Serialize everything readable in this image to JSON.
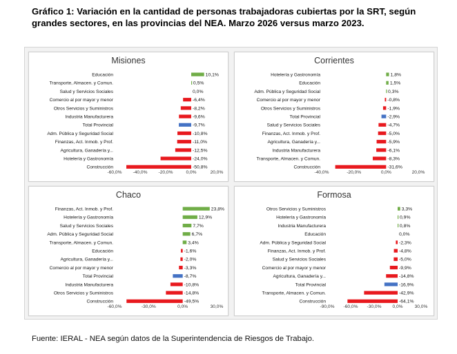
{
  "title": "Gráfico 1: Variación en la cantidad de personas trabajadoras cubiertas por la SRT, según grandes sectores, en las provincias del NEA. Marzo 2026 versus marzo 2023.",
  "source": "Fuente: IERAL - NEA según datos de la Superintendencia de Riesgos de Trabajo.",
  "colors": {
    "positive": "#70ad47",
    "negative": "#e8191e",
    "total": "#4472c4"
  },
  "chart_data": [
    {
      "type": "bar",
      "orientation": "horizontal",
      "title": "Misiones",
      "xlim": [
        -60,
        20
      ],
      "ticks": [
        -60,
        -40,
        -20,
        0,
        20
      ],
      "tick_labels": [
        "-60,0%",
        "-40,0%",
        "-20,0%",
        "0,0%",
        "20,0%"
      ],
      "categories": [
        "Educación",
        "Transporte, Almacen. y Comun.",
        "Salud y Servicios Sociales",
        "Comercio al por mayor y menor",
        "Otros Servicios y Suministros",
        "Industria Manufacturera",
        "Total Provincial",
        "Adm. Pública y Seguridad Social",
        "Finanzas, Act. Inmob. y Prof.",
        "Agricultura, Ganadería y...",
        "Hotelería y Gastronomía",
        "Construcción"
      ],
      "values": [
        10.1,
        0.5,
        0.0,
        -6.4,
        -8.2,
        -9.6,
        -9.7,
        -10.8,
        -11.0,
        -12.5,
        -24.0,
        -50.8
      ],
      "labels": [
        "10,1%",
        "0,5%",
        "0,0%",
        "-6,4%",
        "-8,2%",
        "-9,6%",
        "-9,7%",
        "-10,8%",
        "-11,0%",
        "-12,5%",
        "-24,0%",
        "-50,8%"
      ]
    },
    {
      "type": "bar",
      "orientation": "horizontal",
      "title": "Corrientes",
      "xlim": [
        -40,
        20
      ],
      "ticks": [
        -40,
        -20,
        0,
        20
      ],
      "tick_labels": [
        "-40,0%",
        "-20,0%",
        "0,0%",
        "20,0%"
      ],
      "categories": [
        "Hotelería y Gastronomía",
        "Educación",
        "Adm. Pública y Seguridad Social",
        "Comercio al por mayor y menor",
        "Otros Servicios y Suministros",
        "Total Provincial",
        "Salud y Servicios Sociales",
        "Finanzas, Act. Inmob. y Prof.",
        "Agricultura, Ganadería y...",
        "Industria Manufacturera",
        "Transporte, Almacen. y Comun.",
        "Construcción"
      ],
      "values": [
        1.8,
        1.5,
        0.3,
        -0.8,
        -1.9,
        -2.9,
        -4.7,
        -5.0,
        -5.9,
        -6.1,
        -8.3,
        -31.6
      ],
      "labels": [
        "1,8%",
        "1,5%",
        "0,3%",
        "-0,8%",
        "-1,9%",
        "-2,9%",
        "-4,7%",
        "-5,0%",
        "-5,9%",
        "-6,1%",
        "-8,3%",
        "-31,6%"
      ]
    },
    {
      "type": "bar",
      "orientation": "horizontal",
      "title": "Chaco",
      "xlim": [
        -60,
        30
      ],
      "ticks": [
        -60,
        -30,
        0,
        30
      ],
      "tick_labels": [
        "-60,0%",
        "-30,0%",
        "0,0%",
        "30,0%"
      ],
      "categories": [
        "Finanzas, Act. Inmob. y Prof.",
        "Hotelería y Gastronomía",
        "Salud y Servicios Sociales",
        "Adm. Pública y Seguridad Social",
        "Transporte, Almacen. y Comun.",
        "Educación",
        "Agricultura, Ganadería y...",
        "Comercio al por mayor y menor",
        "Total Provincial",
        "Industria Manufacturera",
        "Otros Servicios y Suministros",
        "Construcción"
      ],
      "values": [
        23.8,
        12.9,
        7.7,
        6.7,
        3.4,
        -1.6,
        -2.0,
        -3.3,
        -8.7,
        -10.8,
        -14.8,
        -49.5
      ],
      "labels": [
        "23,8%",
        "12,9%",
        "7,7%",
        "6,7%",
        "3,4%",
        "-1,6%",
        "-2,0%",
        "-3,3%",
        "-8,7%",
        "-10,8%",
        "-14,8%",
        "-49,5%"
      ]
    },
    {
      "type": "bar",
      "orientation": "horizontal",
      "title": "Formosa",
      "xlim": [
        -90,
        30
      ],
      "ticks": [
        -90,
        -60,
        -30,
        0,
        30
      ],
      "tick_labels": [
        "-90,0%",
        "-60,0%",
        "-30,0%",
        "0,0%",
        "30,0%"
      ],
      "categories": [
        "Otros Servicios y Suministros",
        "Hotelería y Gastronomía",
        "Industria Manufacturera",
        "Educación",
        "Adm. Pública y Seguridad Social",
        "Finanzas, Act. Inmob. y Prof.",
        "Salud y Servicios Sociales",
        "Comercio al por mayor y menor",
        "Agricultura, Ganadería y...",
        "Total Provincial",
        "Transporte, Almacen. y Comun.",
        "Construcción"
      ],
      "values": [
        3.3,
        0.9,
        0.8,
        0.0,
        -2.3,
        -4.8,
        -5.0,
        -9.9,
        -14.8,
        -16.9,
        -42.9,
        -64.1
      ],
      "labels": [
        "3,3%",
        "0,9%",
        "0,8%",
        "0,0%",
        "-2,3%",
        "-4,8%",
        "-5,0%",
        "-9,9%",
        "-14,8%",
        "-16,9%",
        "-42,9%",
        "-64,1%"
      ]
    }
  ]
}
